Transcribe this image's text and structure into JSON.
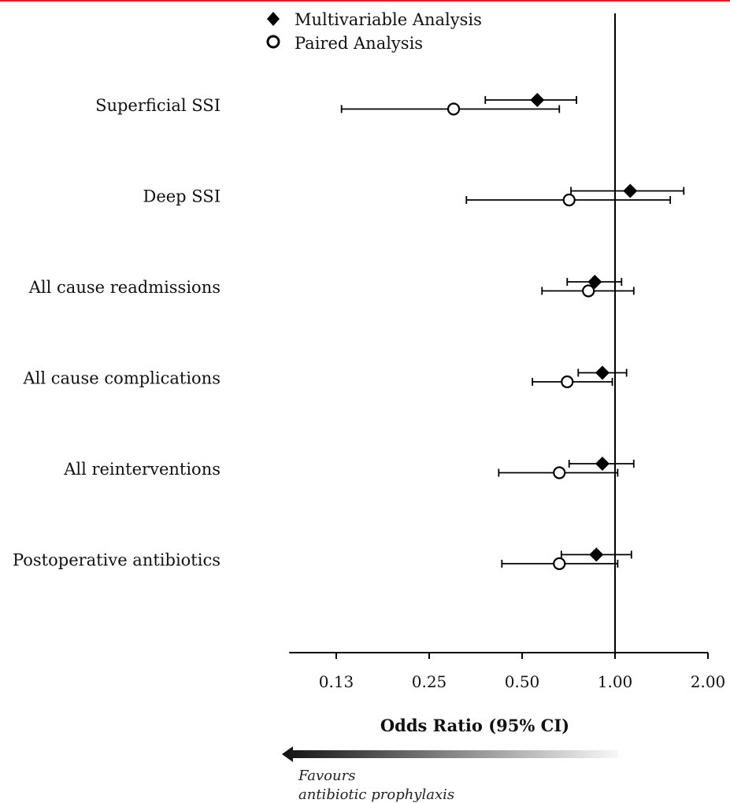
{
  "chart_data": {
    "type": "forest",
    "xlabel": "Odds Ratio (95% CI)",
    "x_scale": "log2",
    "xlim": [
      0.088,
      2.0
    ],
    "xticks": [
      "0.13",
      "0.25",
      "0.50",
      "1.00",
      "2.00"
    ],
    "xtick_values": [
      0.125,
      0.25,
      0.5,
      1.0,
      2.0
    ],
    "reference_line": 1.0,
    "categories": [
      "Superficial SSI",
      "Deep SSI",
      "All cause readmissions",
      "All cause complications",
      "All reinterventions",
      "Postoperative antibiotics"
    ],
    "series": [
      {
        "name": "Multivariable Analysis",
        "marker": "filled-diamond",
        "color": "#000000",
        "values": [
          {
            "or": 0.56,
            "lo": 0.38,
            "hi": 0.75
          },
          {
            "or": 1.12,
            "lo": 0.72,
            "hi": 1.67
          },
          {
            "or": 0.86,
            "lo": 0.7,
            "hi": 1.05
          },
          {
            "or": 0.91,
            "lo": 0.76,
            "hi": 1.09
          },
          {
            "or": 0.91,
            "lo": 0.71,
            "hi": 1.15
          },
          {
            "or": 0.87,
            "lo": 0.67,
            "hi": 1.13
          }
        ]
      },
      {
        "name": "Paired Analysis",
        "marker": "open-circle",
        "color": "#000000",
        "values": [
          {
            "or": 0.3,
            "lo": 0.13,
            "hi": 0.66
          },
          {
            "or": 0.71,
            "lo": 0.33,
            "hi": 1.51
          },
          {
            "or": 0.82,
            "lo": 0.58,
            "hi": 1.15
          },
          {
            "or": 0.7,
            "lo": 0.54,
            "hi": 0.98
          },
          {
            "or": 0.66,
            "lo": 0.42,
            "hi": 1.02
          },
          {
            "or": 0.66,
            "lo": 0.43,
            "hi": 1.02
          }
        ]
      }
    ],
    "legend_position": "top-center",
    "annotation": {
      "line1": "Favours",
      "line2": "antibiotic prophylaxis",
      "arrow_direction": "left"
    }
  }
}
